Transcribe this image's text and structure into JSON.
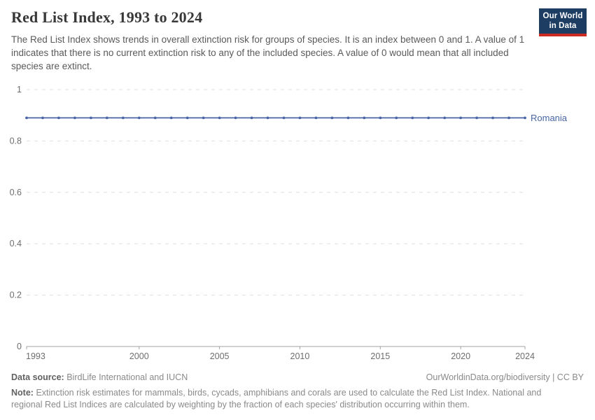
{
  "header": {
    "subtitle": "The Red List Index shows trends in overall extinction risk for groups of species. It is an index between 0 and 1. A value of 1 indicates that there is no current extinction risk to any of the included species. A value of 0 would mean that all included species are extinct."
  },
  "logo": {
    "line1": "Our World",
    "line2": "in Data",
    "bg_color": "#1d3d63",
    "stripe_color": "#cc2b24"
  },
  "footer": {
    "source_label": "Data source:",
    "source_value": "BirdLife International and IUCN",
    "attribution": "OurWorldinData.org/biodiversity | CC BY",
    "note_label": "Note:",
    "note_value": "Extinction risk estimates for mammals, birds, cycads, amphibians and corals are used to calculate the Red List Index. National and regional Red List Indices are calculated by weighting by the fraction of each species' distribution occurring within them."
  },
  "chart_data": {
    "type": "line",
    "title": "Red List Index, 1993 to 2024",
    "xlabel": "",
    "ylabel": "",
    "xlim": [
      1993,
      2024
    ],
    "ylim": [
      0,
      1
    ],
    "xticks": [
      1993,
      2000,
      2005,
      2010,
      2015,
      2020,
      2024
    ],
    "yticks": [
      0,
      0.2,
      0.4,
      0.6,
      0.8,
      1
    ],
    "grid": true,
    "legend_position": "end-of-line-label",
    "x": [
      1993,
      1994,
      1995,
      1996,
      1997,
      1998,
      1999,
      2000,
      2001,
      2002,
      2003,
      2004,
      2005,
      2006,
      2007,
      2008,
      2009,
      2010,
      2011,
      2012,
      2013,
      2014,
      2015,
      2016,
      2017,
      2018,
      2019,
      2020,
      2021,
      2022,
      2023,
      2024
    ],
    "series": [
      {
        "name": "Romania",
        "color": "#4a65a5",
        "values": [
          0.89,
          0.89,
          0.89,
          0.89,
          0.89,
          0.89,
          0.89,
          0.89,
          0.89,
          0.89,
          0.89,
          0.89,
          0.89,
          0.89,
          0.89,
          0.89,
          0.89,
          0.89,
          0.89,
          0.89,
          0.89,
          0.89,
          0.89,
          0.89,
          0.89,
          0.89,
          0.89,
          0.89,
          0.89,
          0.89,
          0.89,
          0.89
        ]
      }
    ],
    "axis_color": "#a3a3a3",
    "gridline_color": "#e0e0e0",
    "tick_label_color": "#6e6e6e"
  }
}
